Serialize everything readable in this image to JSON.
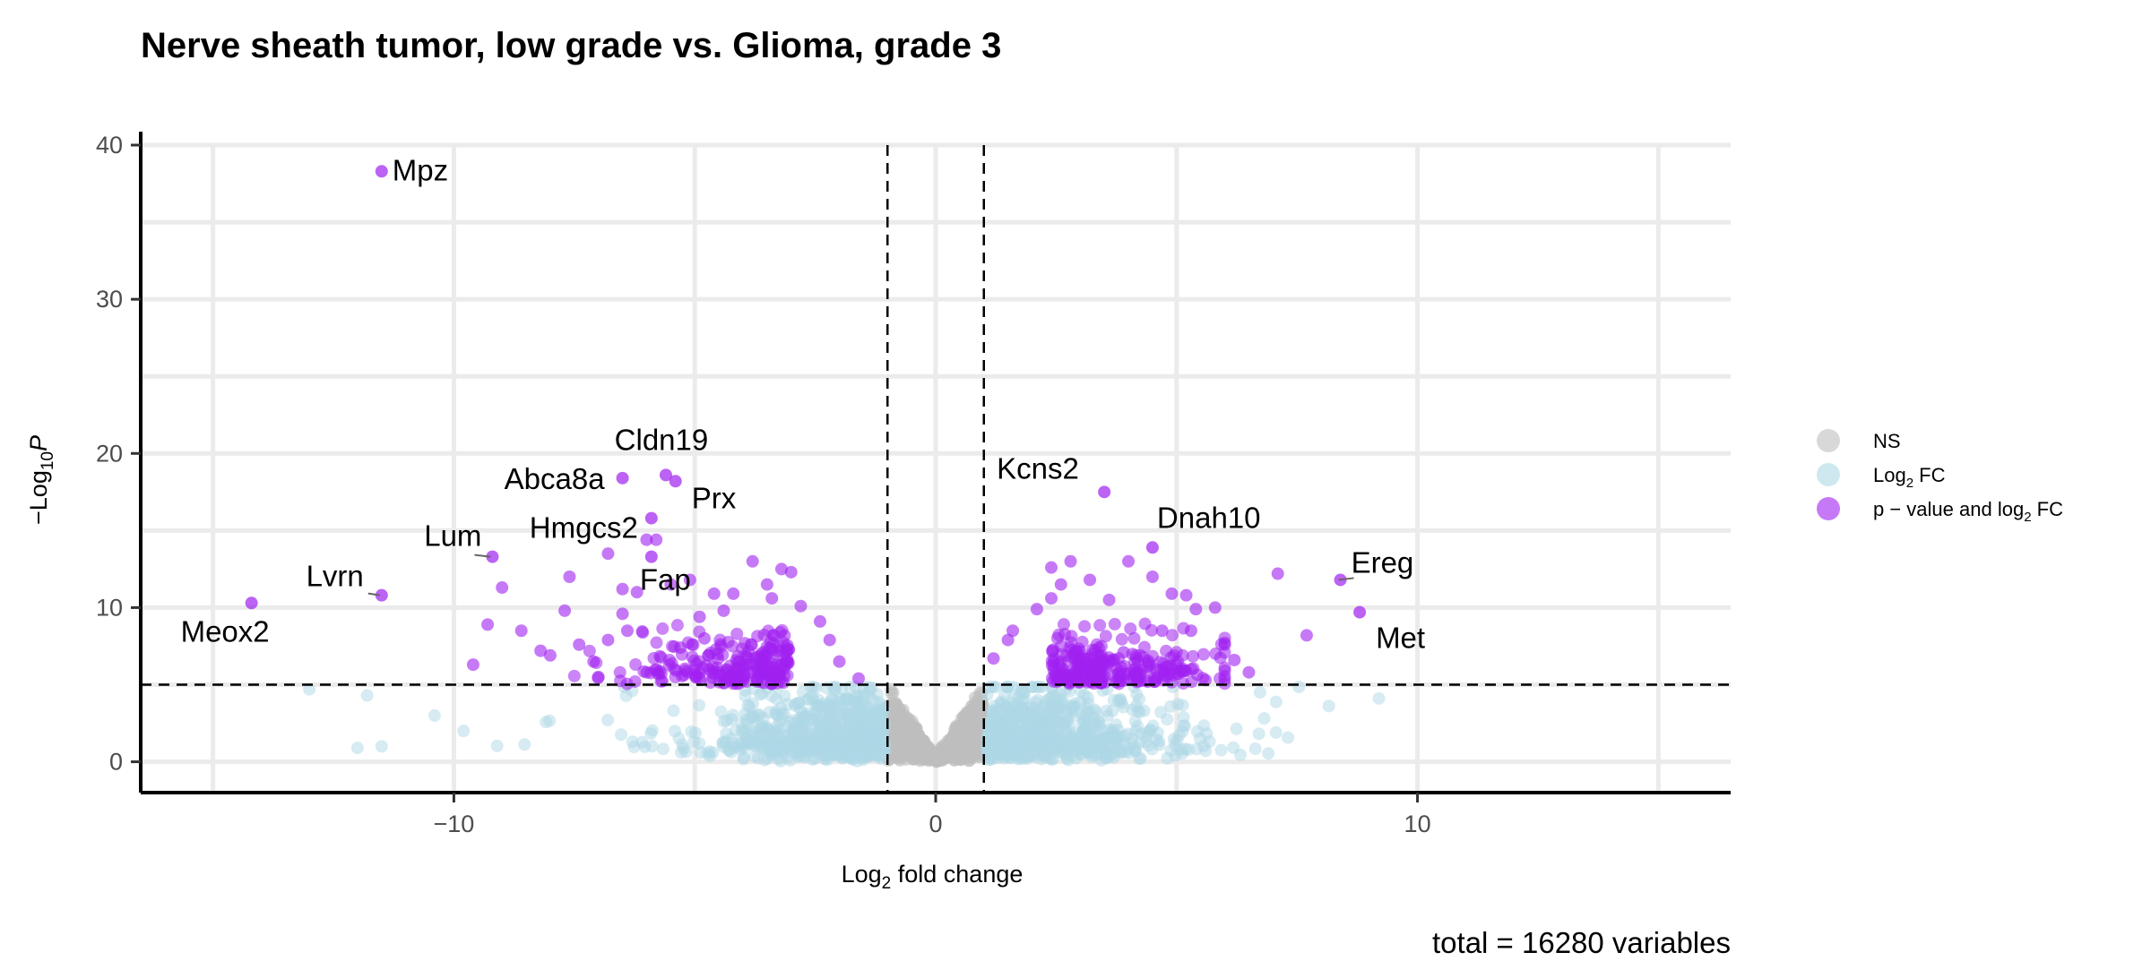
{
  "chart_data": {
    "type": "scatter",
    "title": "Nerve sheath tumor, low grade vs. Glioma, grade 3",
    "xlabel_main": "Log",
    "xlabel_sub": "2",
    "xlabel_rest": " fold change",
    "ylabel_prefix": "−Log",
    "ylabel_sub": "10",
    "ylabel_p": "P",
    "caption": "total = 16280 variables",
    "xlim": [
      -16.5,
      16.5
    ],
    "ylim": [
      -2,
      40
    ],
    "x_ticks": [
      {
        "value": -10,
        "label": "−10"
      },
      {
        "value": 0,
        "label": "0"
      },
      {
        "value": 10,
        "label": "10"
      }
    ],
    "y_ticks": [
      {
        "value": 0,
        "label": "0"
      },
      {
        "value": 10,
        "label": "10"
      },
      {
        "value": 20,
        "label": "20"
      },
      {
        "value": 30,
        "label": "30"
      },
      {
        "value": 40,
        "label": "40"
      }
    ],
    "fc_cutoff": 1,
    "p_cutoff": 5,
    "grid": true,
    "legend_position": "right",
    "legend": [
      {
        "key": "NS",
        "label": "NS",
        "color": "#bebebe"
      },
      {
        "key": "FC",
        "label_main": "Log",
        "label_sub": "2",
        "label_rest": " FC",
        "color": "#add8e6"
      },
      {
        "key": "PFC",
        "label": "p − value and log",
        "label_sub": "2",
        "label_rest": " FC",
        "color": "#a020f0"
      }
    ],
    "labeled_genes": [
      {
        "name": "Mpz",
        "x": -11.5,
        "y": 38.3
      },
      {
        "name": "Cldn19",
        "x": -5.6,
        "y": 18.6
      },
      {
        "name": "Prx",
        "x": -5.4,
        "y": 18.2
      },
      {
        "name": "Abca8a",
        "x": -6.5,
        "y": 18.4
      },
      {
        "name": "Hmgcs2",
        "x": -5.9,
        "y": 15.8
      },
      {
        "name": "Lum",
        "x": -9.2,
        "y": 13.3
      },
      {
        "name": "Fap",
        "x": -5.9,
        "y": 13.3
      },
      {
        "name": "Lvrn",
        "x": -11.5,
        "y": 10.8
      },
      {
        "name": "Meox2",
        "x": -14.2,
        "y": 10.3
      },
      {
        "name": "Kcns2",
        "x": 3.5,
        "y": 17.5
      },
      {
        "name": "Dnah10",
        "x": 4.5,
        "y": 13.9
      },
      {
        "name": "Ereg",
        "x": 8.4,
        "y": 11.8
      },
      {
        "name": "Met",
        "x": 8.8,
        "y": 9.7
      }
    ],
    "other_significant_points": [
      [
        -9.6,
        6.3
      ],
      [
        -9.3,
        8.9
      ],
      [
        -9.0,
        11.3
      ],
      [
        -8.6,
        8.5
      ],
      [
        -8.2,
        7.2
      ],
      [
        -8.0,
        6.9
      ],
      [
        -7.7,
        9.8
      ],
      [
        -7.6,
        12.0
      ],
      [
        -7.4,
        7.6
      ],
      [
        -7.1,
        6.5
      ],
      [
        -6.8,
        7.9
      ],
      [
        -6.8,
        13.5
      ],
      [
        -6.5,
        11.2
      ],
      [
        -6.2,
        11.0
      ],
      [
        -6.5,
        9.6
      ],
      [
        -6.4,
        8.5
      ],
      [
        -6.0,
        14.4
      ],
      [
        -5.8,
        14.4
      ],
      [
        -5.5,
        11.5
      ],
      [
        -5.1,
        11.8
      ],
      [
        -4.6,
        10.9
      ],
      [
        -4.2,
        10.9
      ],
      [
        -3.8,
        13.0
      ],
      [
        -3.5,
        11.5
      ],
      [
        -3.2,
        12.5
      ],
      [
        -3.0,
        12.3
      ],
      [
        -2.4,
        9.1
      ],
      [
        -2.2,
        7.9
      ],
      [
        -4.9,
        9.4
      ],
      [
        -4.4,
        9.8
      ],
      [
        -3.4,
        10.6
      ],
      [
        -2.8,
        10.1
      ],
      [
        -5.3,
        7.4
      ],
      [
        -4.8,
        8.0
      ],
      [
        -6.0,
        5.8
      ],
      [
        -7.0,
        5.5
      ],
      [
        -2.0,
        6.5
      ],
      [
        -1.6,
        5.4
      ],
      [
        2.1,
        9.9
      ],
      [
        2.4,
        10.6
      ],
      [
        2.6,
        11.5
      ],
      [
        2.4,
        12.6
      ],
      [
        2.8,
        13.0
      ],
      [
        3.2,
        11.8
      ],
      [
        3.6,
        10.5
      ],
      [
        4.0,
        13.0
      ],
      [
        4.5,
        12.0
      ],
      [
        4.9,
        10.9
      ],
      [
        5.2,
        10.8
      ],
      [
        5.4,
        9.9
      ],
      [
        5.8,
        10.0
      ],
      [
        6.0,
        7.7
      ],
      [
        6.5,
        5.8
      ],
      [
        7.1,
        12.2
      ],
      [
        7.7,
        8.2
      ],
      [
        5.3,
        8.5
      ],
      [
        4.7,
        8.5
      ],
      [
        3.9,
        7.1
      ],
      [
        5.6,
        5.3
      ],
      [
        1.6,
        8.5
      ],
      [
        1.2,
        6.7
      ],
      [
        1.5,
        7.9
      ],
      [
        6.2,
        6.6
      ],
      [
        5.0,
        6.3
      ]
    ]
  }
}
